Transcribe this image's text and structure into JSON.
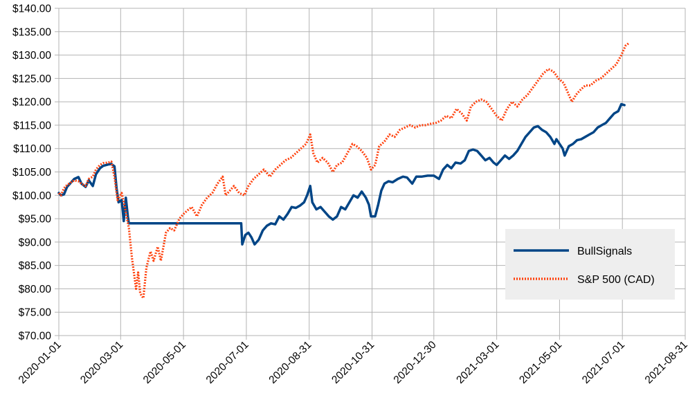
{
  "chart_data": {
    "type": "line",
    "title": "",
    "xlabel": "",
    "ylabel": "",
    "ylim": [
      70,
      140
    ],
    "y_ticks": [
      "$70.00",
      "$75.00",
      "$80.00",
      "$85.00",
      "$90.00",
      "$95.00",
      "$100.00",
      "$105.00",
      "$110.00",
      "$115.00",
      "$120.00",
      "$125.00",
      "$130.00",
      "$135.00",
      "$140.00"
    ],
    "x_ticks": [
      "2020-01-01",
      "2020-03-01",
      "2020-05-01",
      "2020-07-01",
      "2020-08-31",
      "2020-10-31",
      "2020-12-30",
      "2021-03-01",
      "2021-05-01",
      "2021-07-01",
      "2021-08-31"
    ],
    "xlim": [
      "2020-01-01",
      "2021-08-31"
    ],
    "grid": true,
    "legend_position": "right",
    "series": [
      {
        "name": "BullSignals",
        "color": "#004586",
        "style": "solid",
        "points": [
          [
            "2020-01-01",
            100.5
          ],
          [
            "2020-01-03",
            100.0
          ],
          [
            "2020-01-06",
            100.2
          ],
          [
            "2020-01-09",
            101.8
          ],
          [
            "2020-01-13",
            102.8
          ],
          [
            "2020-01-16",
            103.5
          ],
          [
            "2020-01-20",
            103.9
          ],
          [
            "2020-01-23",
            102.5
          ],
          [
            "2020-01-27",
            101.8
          ],
          [
            "2020-01-30",
            103.2
          ],
          [
            "2020-02-03",
            102.0
          ],
          [
            "2020-02-06",
            104.5
          ],
          [
            "2020-02-10",
            105.8
          ],
          [
            "2020-02-13",
            106.3
          ],
          [
            "2020-02-18",
            106.6
          ],
          [
            "2020-02-21",
            106.7
          ],
          [
            "2020-02-24",
            106.2
          ],
          [
            "2020-02-26",
            101.5
          ],
          [
            "2020-02-28",
            98.5
          ],
          [
            "2020-03-02",
            99.0
          ],
          [
            "2020-03-04",
            94.5
          ],
          [
            "2020-03-06",
            99.5
          ],
          [
            "2020-03-08",
            95.5
          ],
          [
            "2020-03-09",
            94.0
          ],
          [
            "2020-04-01",
            94.0
          ],
          [
            "2020-05-01",
            94.0
          ],
          [
            "2020-06-01",
            94.0
          ],
          [
            "2020-06-26",
            94.0
          ],
          [
            "2020-06-27",
            89.5
          ],
          [
            "2020-06-30",
            91.5
          ],
          [
            "2020-07-03",
            92.0
          ],
          [
            "2020-07-06",
            91.0
          ],
          [
            "2020-07-09",
            89.5
          ],
          [
            "2020-07-13",
            90.5
          ],
          [
            "2020-07-17",
            92.5
          ],
          [
            "2020-07-21",
            93.5
          ],
          [
            "2020-07-25",
            94.0
          ],
          [
            "2020-07-29",
            93.8
          ],
          [
            "2020-08-02",
            95.5
          ],
          [
            "2020-08-06",
            94.8
          ],
          [
            "2020-08-10",
            96.0
          ],
          [
            "2020-08-14",
            97.5
          ],
          [
            "2020-08-18",
            97.3
          ],
          [
            "2020-08-22",
            97.8
          ],
          [
            "2020-08-26",
            98.5
          ],
          [
            "2020-08-29",
            100.0
          ],
          [
            "2020-09-01",
            102.0
          ],
          [
            "2020-09-03",
            98.5
          ],
          [
            "2020-09-07",
            97.0
          ],
          [
            "2020-09-11",
            97.5
          ],
          [
            "2020-09-15",
            96.5
          ],
          [
            "2020-09-19",
            95.5
          ],
          [
            "2020-09-23",
            94.8
          ],
          [
            "2020-09-27",
            95.5
          ],
          [
            "2020-10-01",
            97.5
          ],
          [
            "2020-10-05",
            97.0
          ],
          [
            "2020-10-09",
            98.5
          ],
          [
            "2020-10-13",
            100.0
          ],
          [
            "2020-10-17",
            99.5
          ],
          [
            "2020-10-21",
            100.8
          ],
          [
            "2020-10-25",
            99.5
          ],
          [
            "2020-10-28",
            98.0
          ],
          [
            "2020-10-30",
            95.5
          ],
          [
            "2020-11-03",
            95.5
          ],
          [
            "2020-11-06",
            98.0
          ],
          [
            "2020-11-09",
            101.0
          ],
          [
            "2020-11-12",
            102.5
          ],
          [
            "2020-11-16",
            103.0
          ],
          [
            "2020-11-20",
            102.8
          ],
          [
            "2020-11-25",
            103.5
          ],
          [
            "2020-11-30",
            104.0
          ],
          [
            "2020-12-04",
            103.8
          ],
          [
            "2020-12-09",
            102.5
          ],
          [
            "2020-12-13",
            104.0
          ],
          [
            "2020-12-18",
            104.0
          ],
          [
            "2020-12-24",
            104.2
          ],
          [
            "2020-12-30",
            104.2
          ],
          [
            "2021-01-04",
            103.5
          ],
          [
            "2021-01-08",
            105.5
          ],
          [
            "2021-01-12",
            106.5
          ],
          [
            "2021-01-16",
            105.8
          ],
          [
            "2021-01-20",
            107.0
          ],
          [
            "2021-01-25",
            106.8
          ],
          [
            "2021-01-29",
            107.5
          ],
          [
            "2021-02-02",
            109.5
          ],
          [
            "2021-02-06",
            109.8
          ],
          [
            "2021-02-10",
            109.5
          ],
          [
            "2021-02-14",
            108.5
          ],
          [
            "2021-02-18",
            107.5
          ],
          [
            "2021-02-22",
            108.0
          ],
          [
            "2021-02-26",
            107.0
          ],
          [
            "2021-03-01",
            106.5
          ],
          [
            "2021-03-05",
            107.5
          ],
          [
            "2021-03-09",
            108.5
          ],
          [
            "2021-03-13",
            107.8
          ],
          [
            "2021-03-17",
            108.5
          ],
          [
            "2021-03-21",
            109.5
          ],
          [
            "2021-03-25",
            111.0
          ],
          [
            "2021-03-29",
            112.5
          ],
          [
            "2021-04-02",
            113.5
          ],
          [
            "2021-04-06",
            114.5
          ],
          [
            "2021-04-10",
            114.8
          ],
          [
            "2021-04-14",
            114.0
          ],
          [
            "2021-04-18",
            113.5
          ],
          [
            "2021-04-22",
            112.5
          ],
          [
            "2021-04-26",
            111.0
          ],
          [
            "2021-04-28",
            112.0
          ],
          [
            "2021-05-04",
            110.0
          ],
          [
            "2021-05-06",
            108.5
          ],
          [
            "2021-05-10",
            110.5
          ],
          [
            "2021-05-14",
            111.0
          ],
          [
            "2021-05-18",
            111.8
          ],
          [
            "2021-05-22",
            112.0
          ],
          [
            "2021-05-26",
            112.5
          ],
          [
            "2021-05-30",
            113.0
          ],
          [
            "2021-06-03",
            113.5
          ],
          [
            "2021-06-07",
            114.5
          ],
          [
            "2021-06-11",
            115.0
          ],
          [
            "2021-06-15",
            115.5
          ],
          [
            "2021-06-19",
            116.5
          ],
          [
            "2021-06-23",
            117.5
          ],
          [
            "2021-06-27",
            118.0
          ],
          [
            "2021-06-30",
            119.5
          ],
          [
            "2021-07-03",
            119.3
          ]
        ]
      },
      {
        "name": "S&P 500 (CAD)",
        "color": "#ff420e",
        "style": "dotted",
        "points": [
          [
            "2020-01-01",
            100.5
          ],
          [
            "2020-01-03",
            100.0
          ],
          [
            "2020-01-06",
            101.5
          ],
          [
            "2020-01-09",
            102.2
          ],
          [
            "2020-01-13",
            102.8
          ],
          [
            "2020-01-16",
            103.2
          ],
          [
            "2020-01-20",
            103.0
          ],
          [
            "2020-01-23",
            102.5
          ],
          [
            "2020-01-27",
            102.0
          ],
          [
            "2020-01-30",
            103.5
          ],
          [
            "2020-02-03",
            104.0
          ],
          [
            "2020-02-06",
            105.5
          ],
          [
            "2020-02-10",
            106.5
          ],
          [
            "2020-02-13",
            106.9
          ],
          [
            "2020-02-18",
            107.0
          ],
          [
            "2020-02-21",
            107.2
          ],
          [
            "2020-02-24",
            104.0
          ],
          [
            "2020-02-27",
            99.0
          ],
          [
            "2020-03-02",
            100.5
          ],
          [
            "2020-03-05",
            97.5
          ],
          [
            "2020-03-09",
            93.0
          ],
          [
            "2020-03-12",
            86.5
          ],
          [
            "2020-03-16",
            80.0
          ],
          [
            "2020-03-18",
            83.5
          ],
          [
            "2020-03-20",
            79.0
          ],
          [
            "2020-03-23",
            78.0
          ],
          [
            "2020-03-26",
            84.5
          ],
          [
            "2020-03-30",
            88.0
          ],
          [
            "2020-04-02",
            86.0
          ],
          [
            "2020-04-06",
            89.0
          ],
          [
            "2020-04-09",
            86.0
          ],
          [
            "2020-04-14",
            92.0
          ],
          [
            "2020-04-18",
            93.0
          ],
          [
            "2020-04-22",
            92.5
          ],
          [
            "2020-04-27",
            95.0
          ],
          [
            "2020-05-01",
            96.0
          ],
          [
            "2020-05-05",
            96.8
          ],
          [
            "2020-05-09",
            97.5
          ],
          [
            "2020-05-14",
            95.5
          ],
          [
            "2020-05-19",
            98.0
          ],
          [
            "2020-05-24",
            99.5
          ],
          [
            "2020-05-29",
            100.5
          ],
          [
            "2020-06-03",
            102.5
          ],
          [
            "2020-06-08",
            104.0
          ],
          [
            "2020-06-11",
            100.0
          ],
          [
            "2020-06-15",
            101.0
          ],
          [
            "2020-06-19",
            102.0
          ],
          [
            "2020-06-24",
            100.5
          ],
          [
            "2020-06-29",
            100.0
          ],
          [
            "2020-07-03",
            102.0
          ],
          [
            "2020-07-08",
            103.5
          ],
          [
            "2020-07-13",
            104.5
          ],
          [
            "2020-07-18",
            105.5
          ],
          [
            "2020-07-24",
            104.0
          ],
          [
            "2020-07-29",
            105.5
          ],
          [
            "2020-08-03",
            106.5
          ],
          [
            "2020-08-08",
            107.5
          ],
          [
            "2020-08-13",
            108.0
          ],
          [
            "2020-08-18",
            109.0
          ],
          [
            "2020-08-23",
            110.0
          ],
          [
            "2020-08-28",
            111.0
          ],
          [
            "2020-09-01",
            113.0
          ],
          [
            "2020-09-04",
            109.0
          ],
          [
            "2020-09-08",
            107.0
          ],
          [
            "2020-09-13",
            108.0
          ],
          [
            "2020-09-18",
            107.0
          ],
          [
            "2020-09-23",
            105.0
          ],
          [
            "2020-09-27",
            106.5
          ],
          [
            "2020-10-02",
            107.0
          ],
          [
            "2020-10-07",
            109.0
          ],
          [
            "2020-10-12",
            111.0
          ],
          [
            "2020-10-16",
            110.5
          ],
          [
            "2020-10-21",
            109.5
          ],
          [
            "2020-10-26",
            108.0
          ],
          [
            "2020-10-30",
            105.5
          ],
          [
            "2020-11-03",
            106.5
          ],
          [
            "2020-11-07",
            110.5
          ],
          [
            "2020-11-12",
            111.5
          ],
          [
            "2020-11-17",
            113.0
          ],
          [
            "2020-11-22",
            112.5
          ],
          [
            "2020-11-27",
            114.0
          ],
          [
            "2020-12-02",
            114.5
          ],
          [
            "2020-12-07",
            115.0
          ],
          [
            "2020-12-12",
            114.5
          ],
          [
            "2020-12-17",
            115.0
          ],
          [
            "2020-12-22",
            115.0
          ],
          [
            "2020-12-27",
            115.3
          ],
          [
            "2021-01-01",
            115.5
          ],
          [
            "2021-01-06",
            116.0
          ],
          [
            "2021-01-11",
            117.0
          ],
          [
            "2021-01-16",
            116.5
          ],
          [
            "2021-01-21",
            118.5
          ],
          [
            "2021-01-26",
            117.5
          ],
          [
            "2021-01-31",
            116.0
          ],
          [
            "2021-02-04",
            119.0
          ],
          [
            "2021-02-09",
            120.0
          ],
          [
            "2021-02-14",
            120.5
          ],
          [
            "2021-02-19",
            120.0
          ],
          [
            "2021-02-24",
            118.5
          ],
          [
            "2021-03-01",
            117.0
          ],
          [
            "2021-03-06",
            116.0
          ],
          [
            "2021-03-11",
            118.5
          ],
          [
            "2021-03-16",
            120.0
          ],
          [
            "2021-03-21",
            119.0
          ],
          [
            "2021-03-26",
            120.5
          ],
          [
            "2021-03-31",
            121.5
          ],
          [
            "2021-04-05",
            123.0
          ],
          [
            "2021-04-10",
            124.5
          ],
          [
            "2021-04-15",
            126.0
          ],
          [
            "2021-04-20",
            127.0
          ],
          [
            "2021-04-25",
            126.5
          ],
          [
            "2021-04-30",
            125.0
          ],
          [
            "2021-05-05",
            124.0
          ],
          [
            "2021-05-10",
            121.5
          ],
          [
            "2021-05-13",
            120.0
          ],
          [
            "2021-05-17",
            121.5
          ],
          [
            "2021-05-21",
            122.5
          ],
          [
            "2021-05-26",
            123.5
          ],
          [
            "2021-05-31",
            123.5
          ],
          [
            "2021-06-05",
            124.5
          ],
          [
            "2021-06-10",
            125.0
          ],
          [
            "2021-06-15",
            126.0
          ],
          [
            "2021-06-20",
            127.0
          ],
          [
            "2021-06-25",
            128.0
          ],
          [
            "2021-06-30",
            130.0
          ],
          [
            "2021-07-04",
            132.0
          ],
          [
            "2021-07-07",
            132.5
          ]
        ]
      }
    ]
  }
}
